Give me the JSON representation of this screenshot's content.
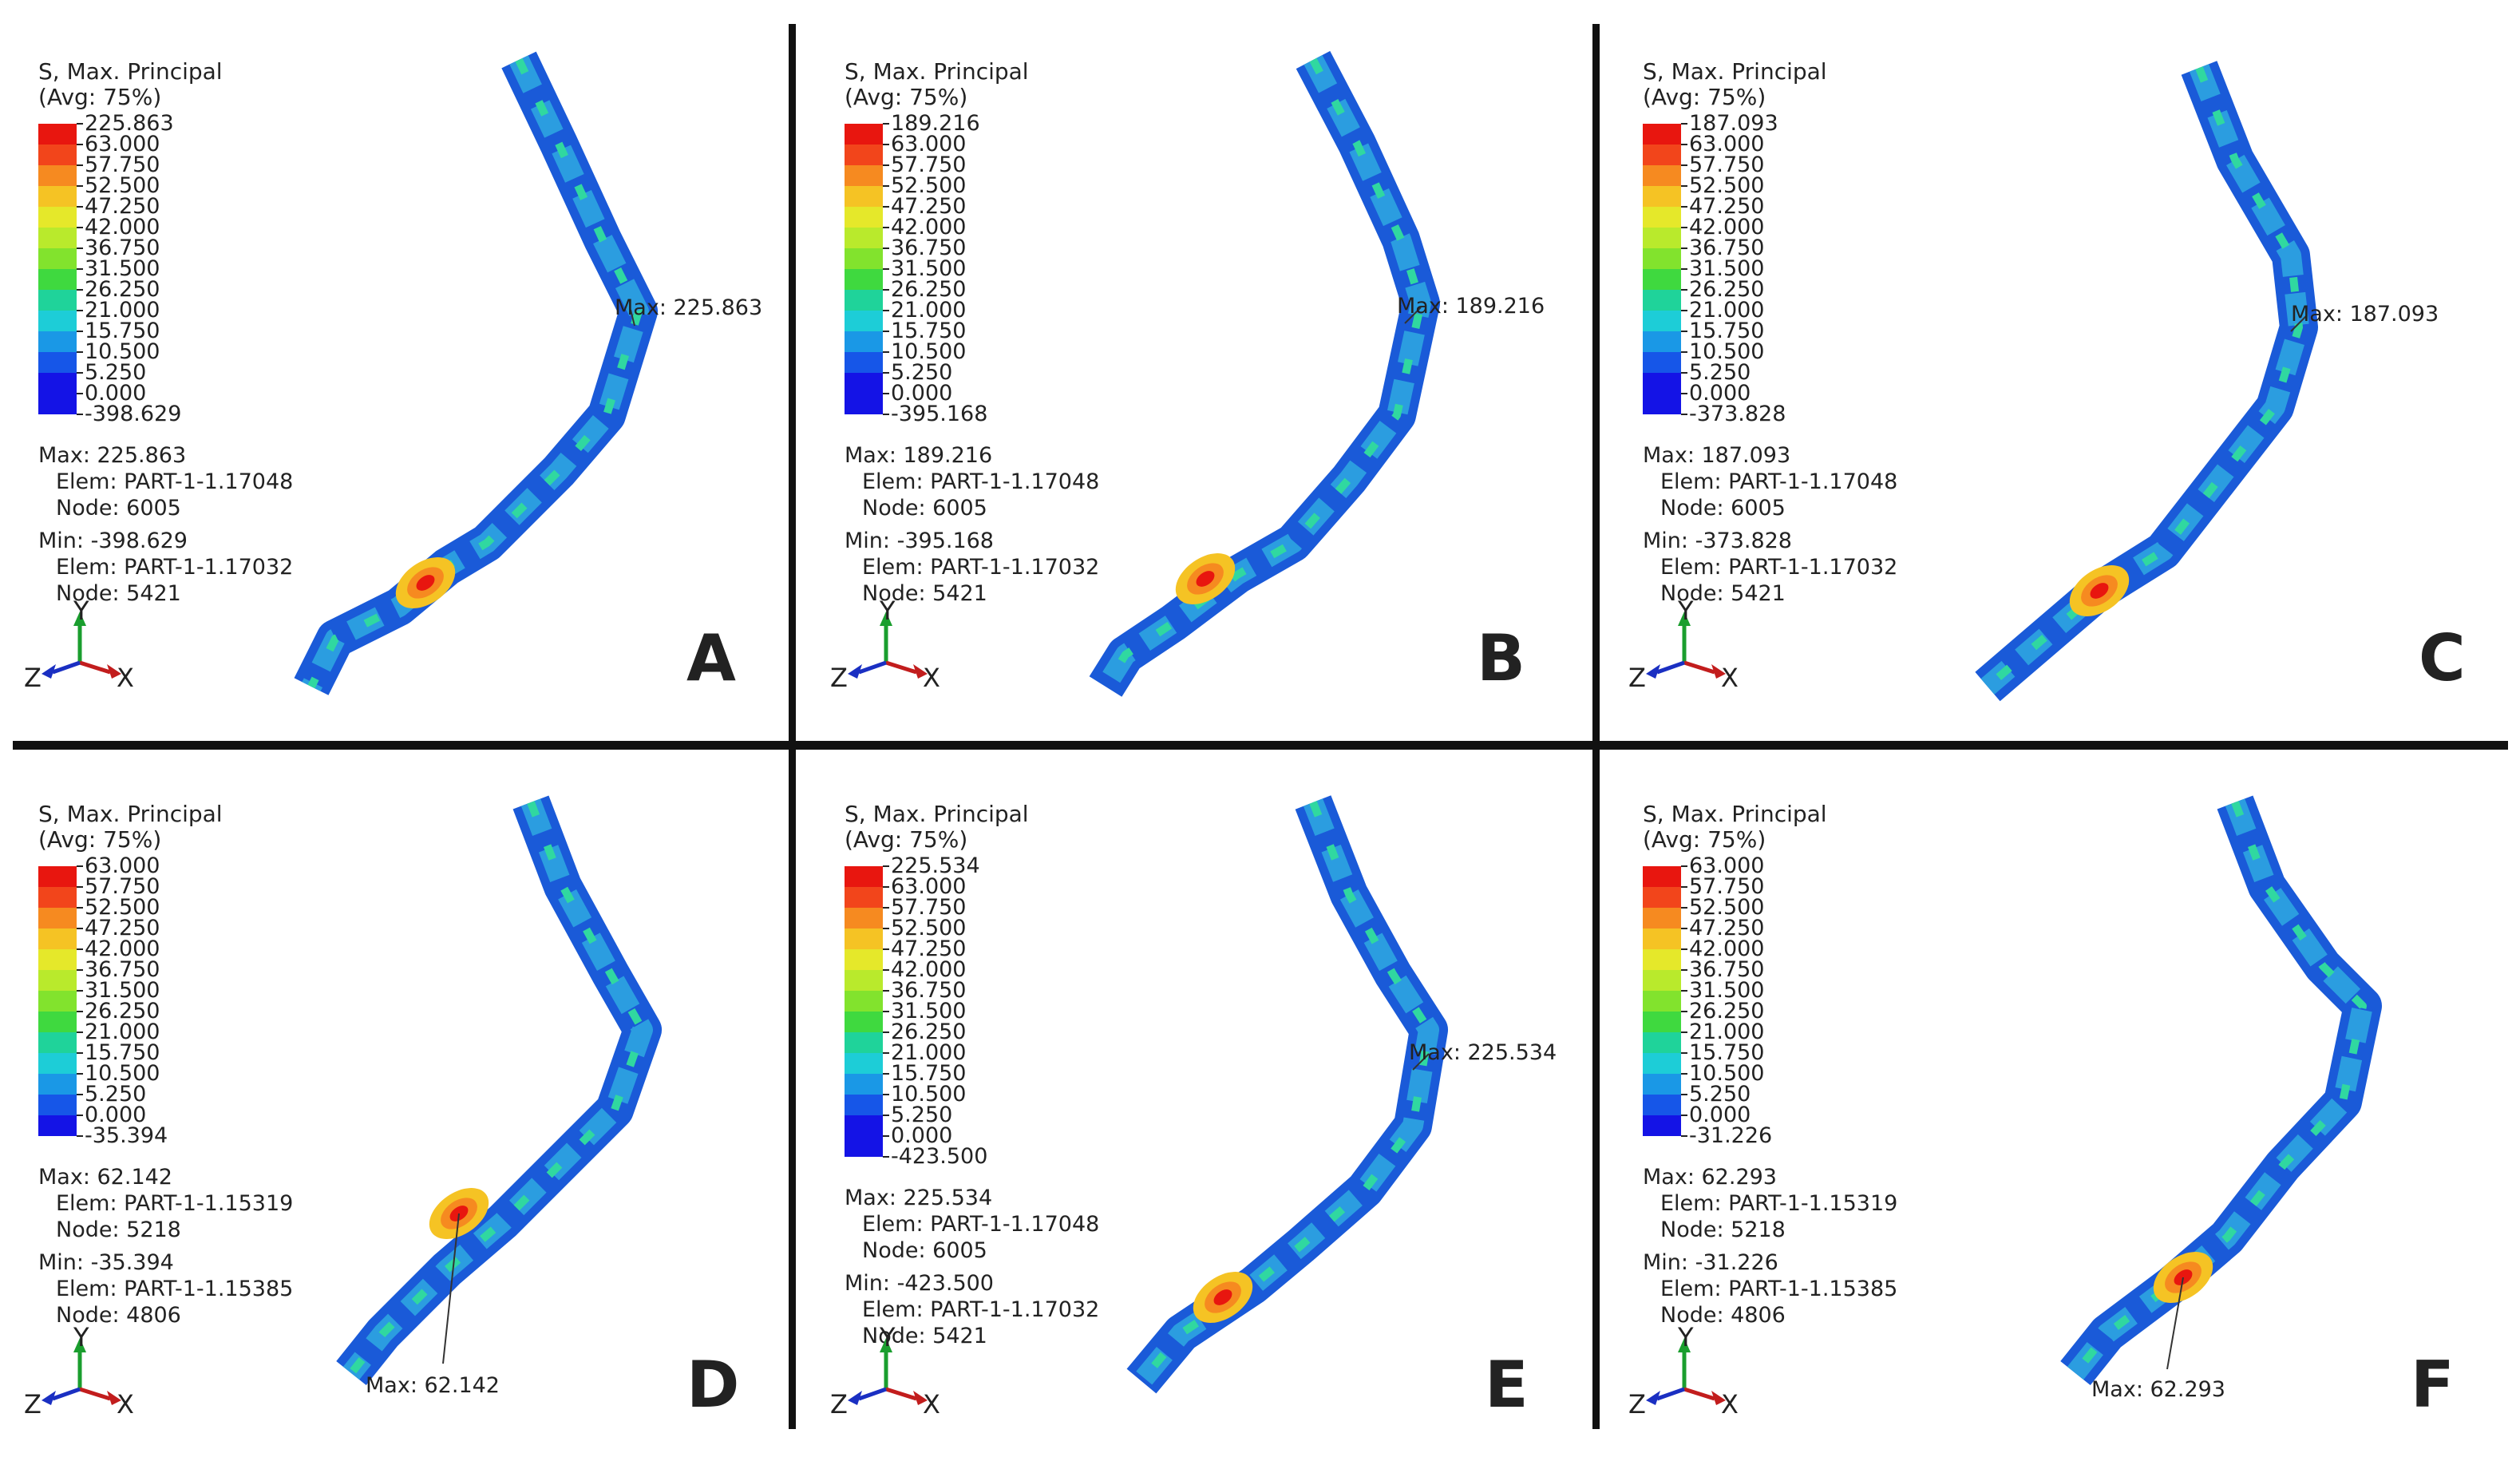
{
  "panels": [
    {
      "id": "A",
      "title": "S, Max. Principal",
      "avg": "(Avg: 75%)",
      "legend": [
        "225.863",
        "63.000",
        "57.750",
        "52.500",
        "47.250",
        "42.000",
        "36.750",
        "31.500",
        "26.250",
        "21.000",
        "15.750",
        "10.500",
        "5.250",
        "0.000",
        "-398.629"
      ],
      "max_label": "Max: 225.863",
      "max_elem": "Elem: PART-1-1.17048",
      "max_node": "Node: 6005",
      "min_label": "Min: -398.629",
      "min_elem": "Elem: PART-1-1.17032",
      "min_node": "Node: 5421",
      "marker": "Max: 225.863",
      "letter": "A"
    },
    {
      "id": "B",
      "title": "S, Max. Principal",
      "avg": "(Avg: 75%)",
      "legend": [
        "189.216",
        "63.000",
        "57.750",
        "52.500",
        "47.250",
        "42.000",
        "36.750",
        "31.500",
        "26.250",
        "21.000",
        "15.750",
        "10.500",
        "5.250",
        "0.000",
        "-395.168"
      ],
      "max_label": "Max: 189.216",
      "max_elem": "Elem: PART-1-1.17048",
      "max_node": "Node: 6005",
      "min_label": "Min: -395.168",
      "min_elem": "Elem: PART-1-1.17032",
      "min_node": "Node: 5421",
      "marker": "Max: 189.216",
      "letter": "B"
    },
    {
      "id": "C",
      "title": "S, Max. Principal",
      "avg": "(Avg: 75%)",
      "legend": [
        "187.093",
        "63.000",
        "57.750",
        "52.500",
        "47.250",
        "42.000",
        "36.750",
        "31.500",
        "26.250",
        "21.000",
        "15.750",
        "10.500",
        "5.250",
        "0.000",
        "-373.828"
      ],
      "max_label": "Max: 187.093",
      "max_elem": "Elem: PART-1-1.17048",
      "max_node": "Node: 6005",
      "min_label": "Min: -373.828",
      "min_elem": "Elem: PART-1-1.17032",
      "min_node": "Node: 5421",
      "marker": "Max: 187.093",
      "letter": "C"
    },
    {
      "id": "D",
      "title": "S, Max. Principal",
      "avg": "(Avg: 75%)",
      "legend": [
        "63.000",
        "57.750",
        "52.500",
        "47.250",
        "42.000",
        "36.750",
        "31.500",
        "26.250",
        "21.000",
        "15.750",
        "10.500",
        "5.250",
        "0.000",
        "-35.394"
      ],
      "max_label": "Max: 62.142",
      "max_elem": "Elem: PART-1-1.15319",
      "max_node": "Node: 5218",
      "min_label": "Min: -35.394",
      "min_elem": "Elem: PART-1-1.15385",
      "min_node": "Node: 4806",
      "marker": "Max: 62.142",
      "letter": "D"
    },
    {
      "id": "E",
      "title": "S, Max. Principal",
      "avg": "(Avg: 75%)",
      "legend": [
        "225.534",
        "63.000",
        "57.750",
        "52.500",
        "47.250",
        "42.000",
        "36.750",
        "31.500",
        "26.250",
        "21.000",
        "15.750",
        "10.500",
        "5.250",
        "0.000",
        "-423.500"
      ],
      "max_label": "Max: 225.534",
      "max_elem": "Elem: PART-1-1.17048",
      "max_node": "Node: 6005",
      "min_label": "Min: -423.500",
      "min_elem": "Elem: PART-1-1.17032",
      "min_node": "Node: 5421",
      "marker": "Max: 225.534",
      "letter": "E"
    },
    {
      "id": "F",
      "title": "S, Max. Principal",
      "avg": "(Avg: 75%)",
      "legend": [
        "63.000",
        "57.750",
        "52.500",
        "47.250",
        "42.000",
        "36.750",
        "31.500",
        "26.250",
        "21.000",
        "15.750",
        "10.500",
        "5.250",
        "0.000",
        "-31.226"
      ],
      "max_label": "Max: 62.293",
      "max_elem": "Elem: PART-1-1.15319",
      "max_node": "Node: 5218",
      "min_label": "Min: -31.226",
      "min_elem": "Elem: PART-1-1.15385",
      "min_node": "Node: 4806",
      "marker": "Max: 62.293",
      "letter": "F"
    }
  ],
  "axes": {
    "y": "Y",
    "z": "Z",
    "x": "X"
  },
  "colors": {
    "scale_13": [
      "#e8160f",
      "#f2451b",
      "#f68a20",
      "#f5c324",
      "#e5e82a",
      "#b9ea2c",
      "#82e32d",
      "#3fd93f",
      "#1fd39a",
      "#1dcdd7",
      "#1a98e6",
      "#1656e8",
      "#1413e6"
    ],
    "scale_14": [
      "#e8160f",
      "#f2451b",
      "#f68a20",
      "#f5c324",
      "#e5e82a",
      "#b9ea2c",
      "#82e32d",
      "#3fd93f",
      "#1fd39a",
      "#1dcdd7",
      "#1a98e6",
      "#1656e8",
      "#1413e6",
      "#1413e6"
    ]
  }
}
